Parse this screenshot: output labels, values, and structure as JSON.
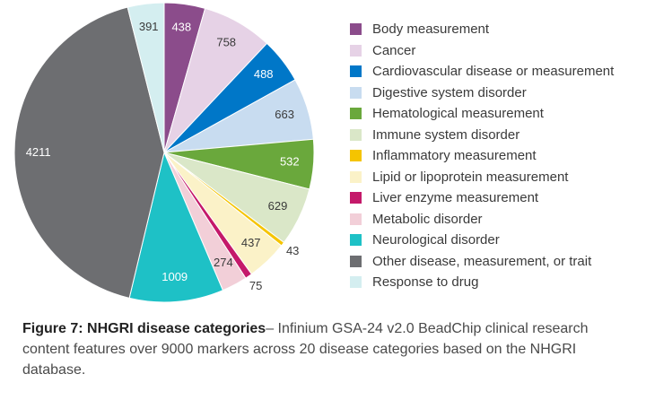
{
  "chart_data": {
    "type": "pie",
    "slices": [
      {
        "label": "Body measurement",
        "value": 438,
        "color": "#8b4c8b"
      },
      {
        "label": "Cancer",
        "value": 758,
        "color": "#e6d2e6"
      },
      {
        "label": "Cardiovascular disease or measurement",
        "value": 488,
        "color": "#0077c8"
      },
      {
        "label": "Digestive system disorder",
        "value": 663,
        "color": "#c8dcf0"
      },
      {
        "label": "Hematological measurement",
        "value": 532,
        "color": "#6aa83c"
      },
      {
        "label": "Immune system disorder",
        "value": 629,
        "color": "#dae7c8"
      },
      {
        "label": "Inflammatory measurement",
        "value": 43,
        "color": "#f5c400"
      },
      {
        "label": "Lipid or lipoprotein measurement",
        "value": 437,
        "color": "#fbf2c8"
      },
      {
        "label": "Liver enzyme measurement",
        "value": 75,
        "color": "#c4196a"
      },
      {
        "label": "Metabolic disorder",
        "value": 274,
        "color": "#f2cfd8"
      },
      {
        "label": "Neurological disorder",
        "value": 1009,
        "color": "#1ec1c6"
      },
      {
        "label": "Other disease, measurement, or trait",
        "value": 4211,
        "color": "#6d6e71"
      },
      {
        "label": "Response to drug",
        "value": 391,
        "color": "#d4eef0"
      }
    ]
  },
  "caption": {
    "heading": "Figure 7: NHGRI disease categories",
    "text": "– Infinium GSA-24 v2.0 BeadChip clinical research content features over 9000 markers across 20 disease categories based on the NHGRI database."
  }
}
